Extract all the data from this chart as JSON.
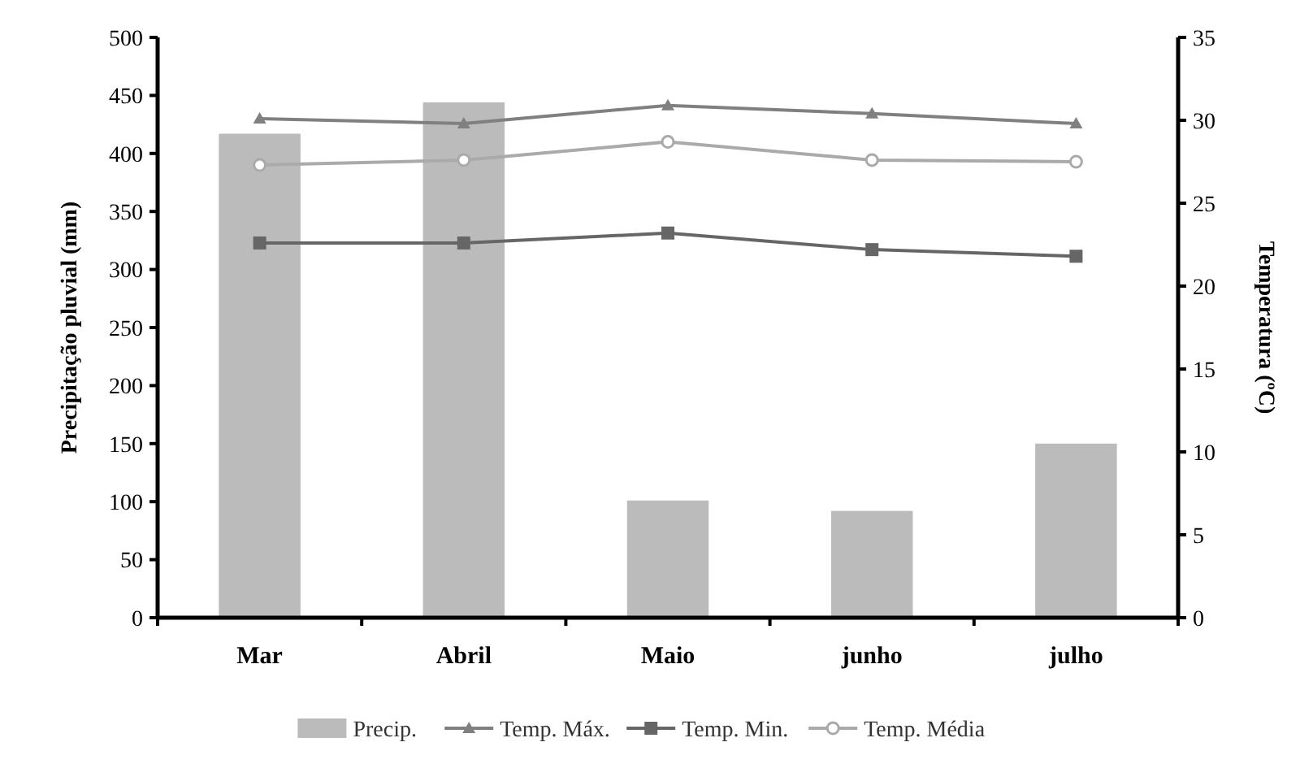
{
  "chart_data": {
    "type": "bar",
    "categories": [
      "Mar",
      "Abril",
      "Maio",
      "junho",
      "julho"
    ],
    "ylabel": "Precipitação pluvial (mm)",
    "y2label": "Temperatura (ºC)",
    "series": [
      {
        "name": "Precip.",
        "color": "#bbbbbb",
        "values": [
          417,
          444,
          101,
          92,
          150
        ]
      },
      {
        "name": "Temp. Máx.",
        "type": "line",
        "axis": "y2",
        "marker": "triangle",
        "color": "#808080",
        "values": [
          30.1,
          29.8,
          30.9,
          30.4,
          29.8
        ]
      },
      {
        "name": "Temp. Min.",
        "type": "line",
        "axis": "y2",
        "marker": "square",
        "color": "#666666",
        "values": [
          22.6,
          22.6,
          23.2,
          22.2,
          21.8
        ]
      },
      {
        "name": "Temp. Média",
        "type": "line",
        "axis": "y2",
        "marker": "circle",
        "color": "#aaaaaa",
        "values": [
          27.3,
          27.6,
          28.7,
          27.6,
          27.5
        ]
      }
    ],
    "ylim": [
      0,
      500
    ],
    "yticks": [
      0,
      50,
      100,
      150,
      200,
      250,
      300,
      350,
      400,
      450,
      500
    ],
    "y2lim": [
      0,
      35
    ],
    "y2ticks": [
      0,
      5,
      10,
      15,
      20,
      25,
      30,
      35
    ],
    "grid": false,
    "legend": "bottom"
  }
}
